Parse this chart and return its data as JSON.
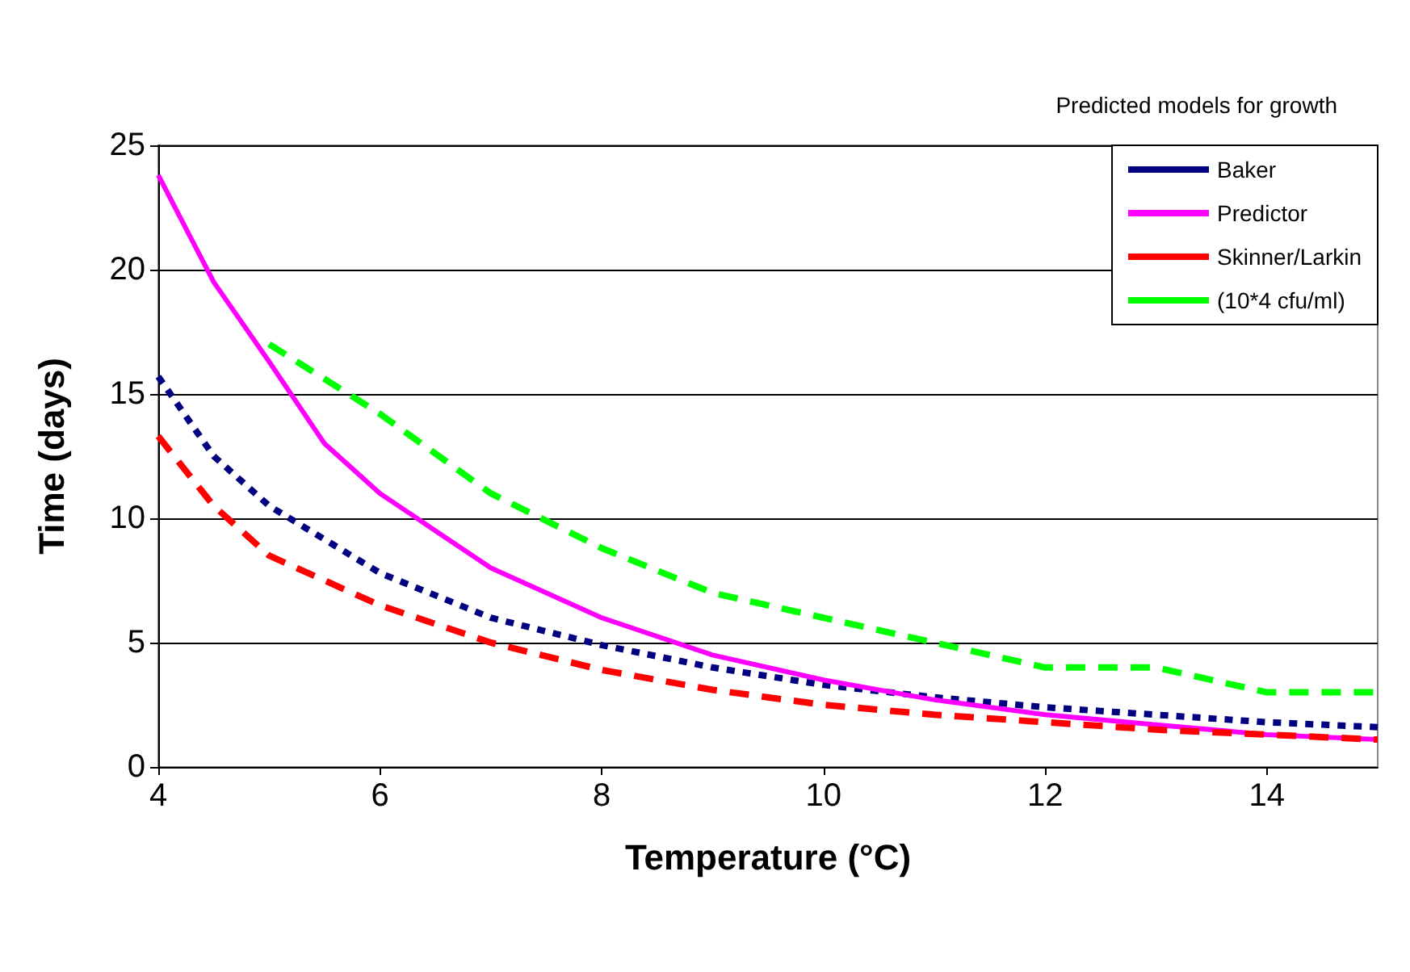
{
  "chart_data": {
    "type": "line",
    "xlabel": "Temperature (°C)",
    "ylabel": "Time (days)",
    "legend_title": "Predicted models for growth",
    "legend": "top right",
    "grid": "y",
    "marker": "none",
    "xlim": [
      4,
      15
    ],
    "xticks": [
      4,
      6,
      8,
      10,
      12,
      14
    ],
    "ylim": [
      0,
      25
    ],
    "yticks": [
      0,
      5,
      10,
      15,
      20,
      25
    ],
    "series": [
      {
        "name": "Baker",
        "color": "#000080",
        "line_style": "dotted",
        "x": [
          4,
          4.5,
          5,
          6,
          7,
          8,
          9,
          10,
          11,
          12,
          13,
          14,
          15
        ],
        "values": [
          15.7,
          12.5,
          10.5,
          7.8,
          6,
          4.9,
          4,
          3.3,
          2.8,
          2.4,
          2.1,
          1.8,
          1.6
        ]
      },
      {
        "name": "Predictor",
        "color": "#ff00ff",
        "line_style": "solid",
        "x": [
          4,
          4.5,
          5,
          5.5,
          6,
          6.5,
          7,
          8,
          9,
          10,
          11,
          12,
          13,
          14,
          15
        ],
        "values": [
          23.8,
          19.5,
          16.3,
          13,
          11,
          9.5,
          8,
          6,
          4.5,
          3.5,
          2.7,
          2.1,
          1.7,
          1.3,
          1.1
        ]
      },
      {
        "name": "Skinner/Larkin",
        "color": "#ff0000",
        "line_style": "dashed",
        "x": [
          4,
          4.5,
          5,
          6,
          7,
          8,
          9,
          10,
          11,
          12,
          13,
          14,
          15
        ],
        "values": [
          13.3,
          10.5,
          8.5,
          6.5,
          5,
          3.9,
          3.1,
          2.5,
          2.1,
          1.8,
          1.5,
          1.3,
          1.1
        ]
      },
      {
        "name": "(10*4 cfu/ml)",
        "color": "#00ff00",
        "line_style": "dashed",
        "x": [
          5,
          6,
          7,
          8,
          9,
          10,
          11,
          12,
          13,
          14,
          15
        ],
        "values": [
          17,
          14.2,
          11,
          8.8,
          7,
          6,
          5,
          4,
          4,
          3,
          3
        ]
      }
    ]
  }
}
